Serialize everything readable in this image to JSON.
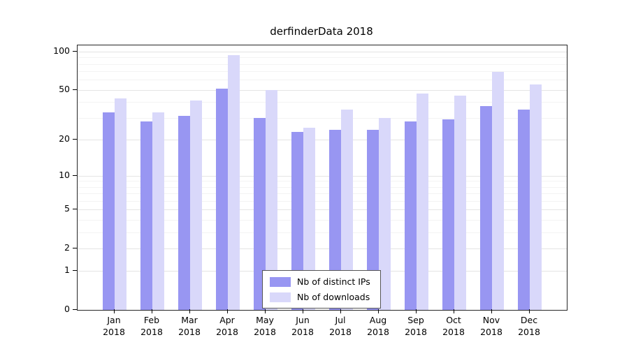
{
  "chart_data": {
    "type": "bar",
    "title": "derfinderData 2018",
    "xlabel": "",
    "ylabel": "",
    "categories": [
      "Jan",
      "Feb",
      "Mar",
      "Apr",
      "May",
      "Jun",
      "Jul",
      "Aug",
      "Sep",
      "Oct",
      "Nov",
      "Dec"
    ],
    "year_label": "2018",
    "series": [
      {
        "name": "Nb of distinct IPs",
        "color": "#9896f2",
        "values": [
          33,
          28,
          31,
          51,
          30,
          23,
          24,
          24,
          28,
          29,
          37,
          35
        ]
      },
      {
        "name": "Nb of downloads",
        "color": "#d9d8fa",
        "values": [
          43,
          33,
          41,
          94,
          50,
          25,
          35,
          30,
          47,
          45,
          69,
          55
        ]
      }
    ],
    "yscale": "log10(value+1)",
    "yticks": [
      0,
      1,
      2,
      5,
      10,
      20,
      50,
      100
    ],
    "minor_gridlines": [
      3,
      4,
      6,
      7,
      8,
      9,
      30,
      40,
      60,
      70,
      80,
      90
    ],
    "ylim_top": 112,
    "grid": true,
    "legend_position": "bottom-center"
  }
}
